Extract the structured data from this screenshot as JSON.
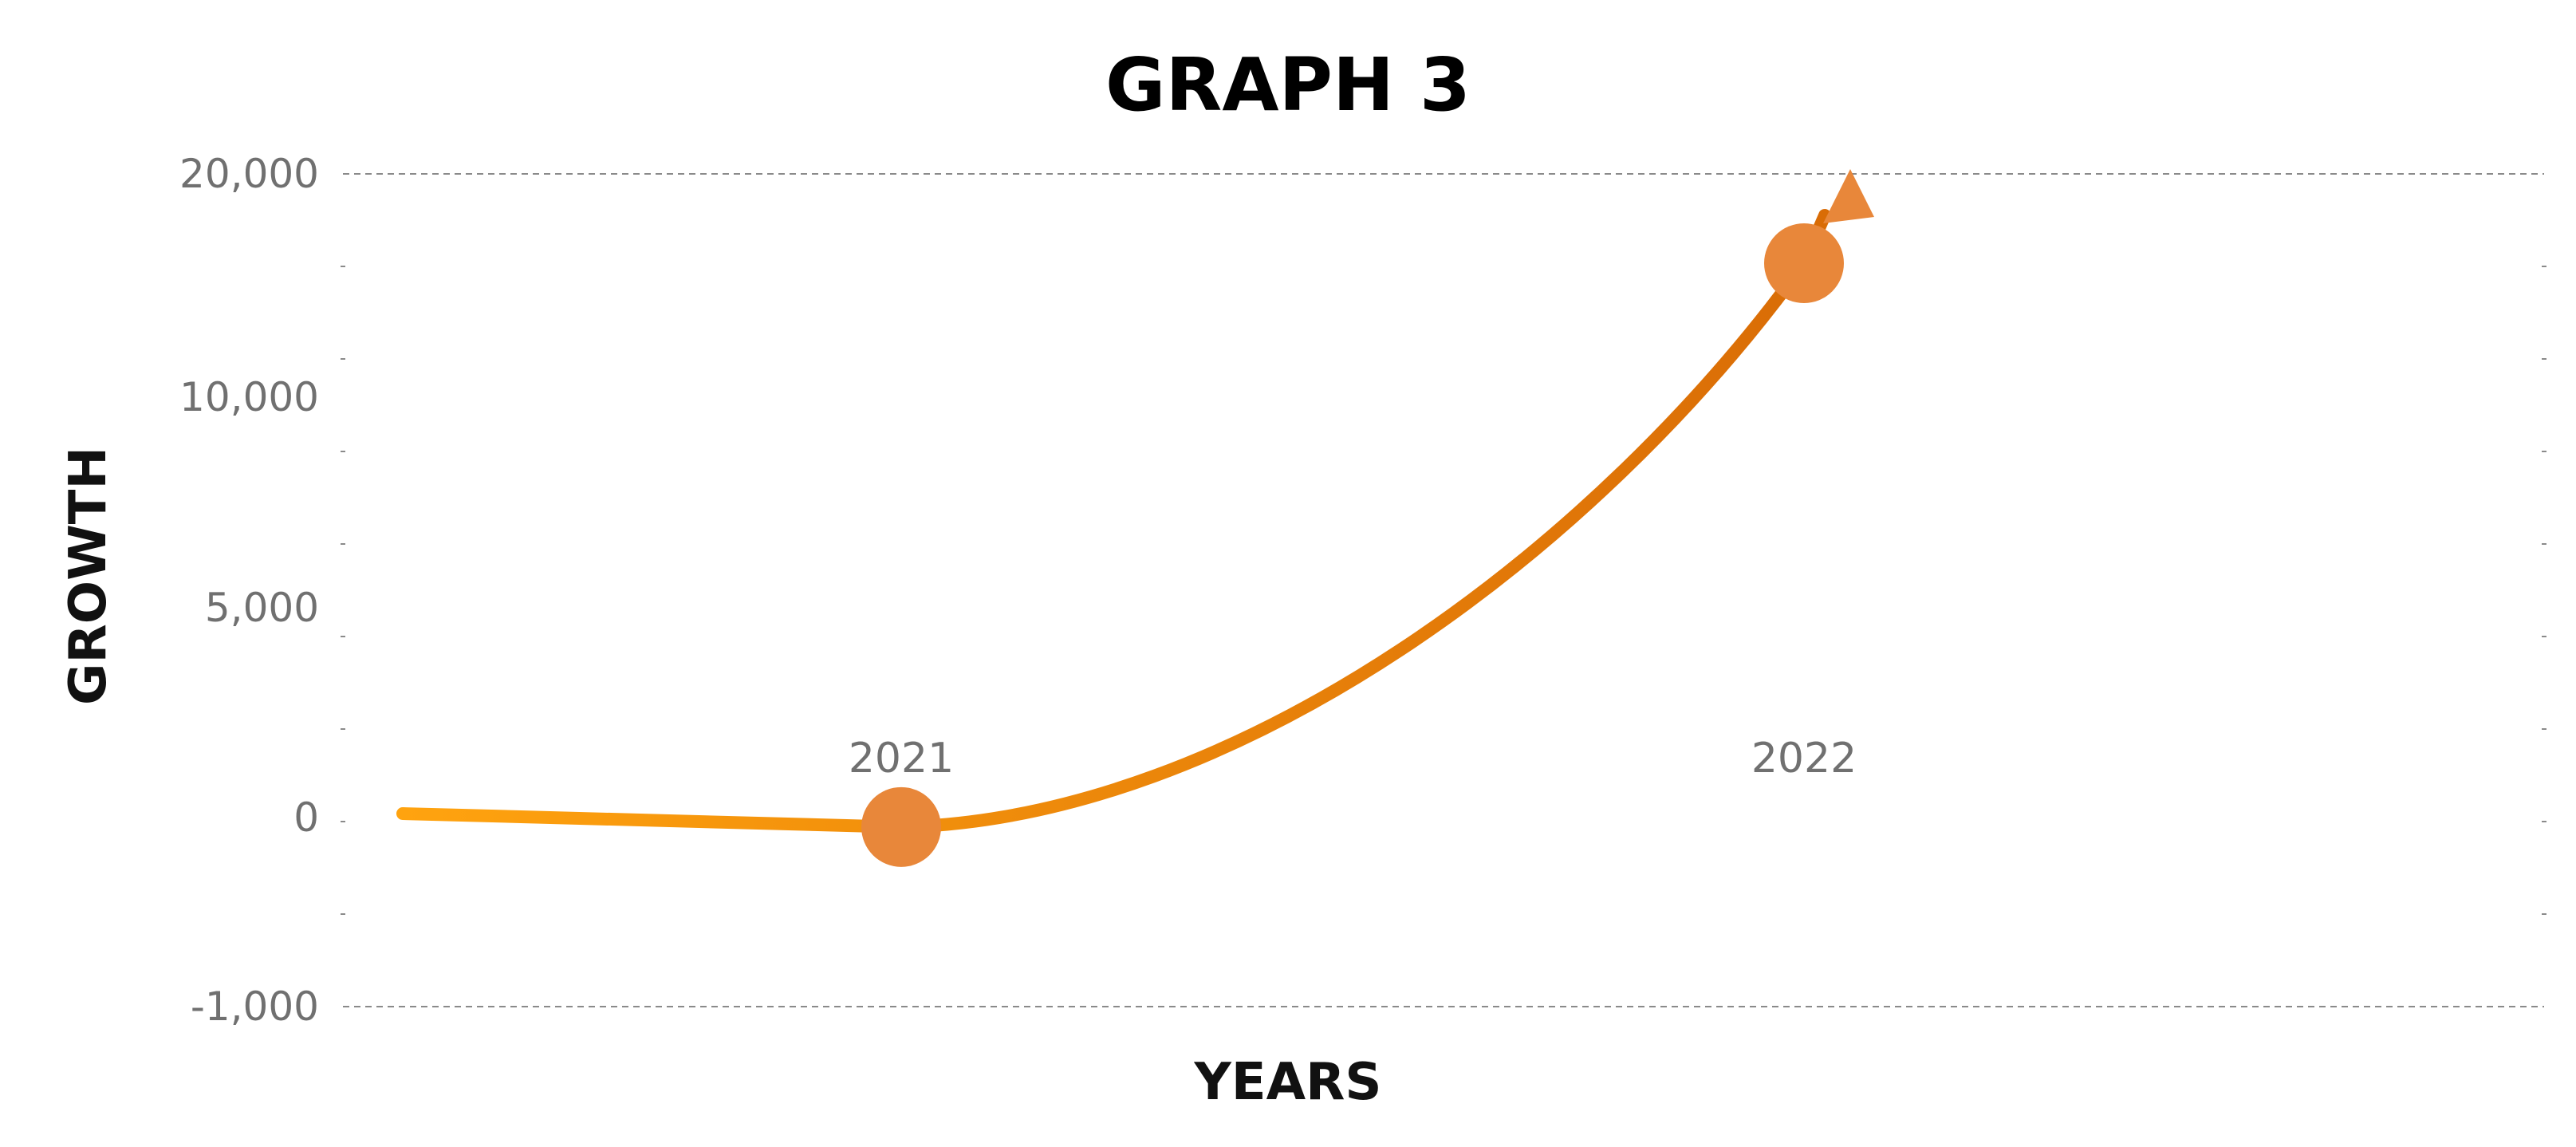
{
  "chart_data": {
    "type": "line",
    "title": "GRAPH 3",
    "xlabel": "YEARS",
    "ylabel": "GROWTH",
    "y_ticks": [
      "20,000",
      "10,000",
      "5,000",
      "0",
      "-1,000"
    ],
    "ylim": [
      -1000,
      20000
    ],
    "y_scale": "non-uniform (tick labels printed at 20,000 / 10,000 / 5,000 / 0 / -1,000)",
    "grid": {
      "top_and_bottom_lines": "dashed",
      "minor_tick_marks": true
    },
    "legend": "none",
    "series": [
      {
        "points": [
          {
            "label": "2021",
            "value": -50
          },
          {
            "label": "2022",
            "value": 16000
          }
        ],
        "trend": "curve rising upward with arrowhead"
      }
    ],
    "colors": {
      "line_start": "#FFA30F",
      "line_end": "#D96C06",
      "marker": "#E8873A",
      "arrow": "#E8873A",
      "tick_text": "#707070",
      "grid": "#8A8A8A"
    }
  }
}
